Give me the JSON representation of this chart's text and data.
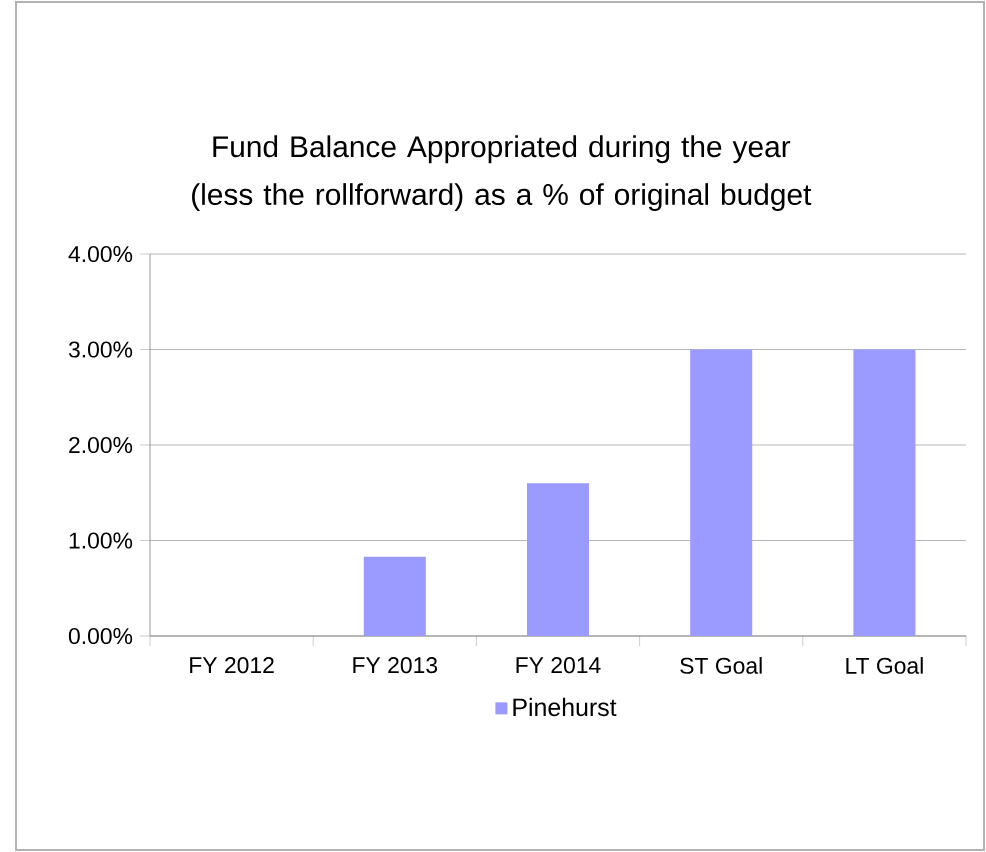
{
  "chart_data": {
    "type": "bar",
    "title": "Fund Balance Appropriated during the year (less the rollforward) as a % of original budget",
    "categories": [
      "FY 2012",
      "FY 2013",
      "FY 2014",
      "ST Goal",
      "LT Goal"
    ],
    "series": [
      {
        "name": "Pinehurst",
        "color": "#9a9aff",
        "values": [
          0,
          0.83,
          1.6,
          3,
          3
        ]
      }
    ],
    "ylim": [
      0,
      4
    ],
    "yticks": [
      {
        "value": 0,
        "label": "0.00%"
      },
      {
        "value": 1,
        "label": "1.00%"
      },
      {
        "value": 2,
        "label": "2.00%"
      },
      {
        "value": 3,
        "label": "3.00%"
      },
      {
        "value": 4,
        "label": "4.00%"
      }
    ],
    "grid": "y",
    "legend": "bottom"
  }
}
